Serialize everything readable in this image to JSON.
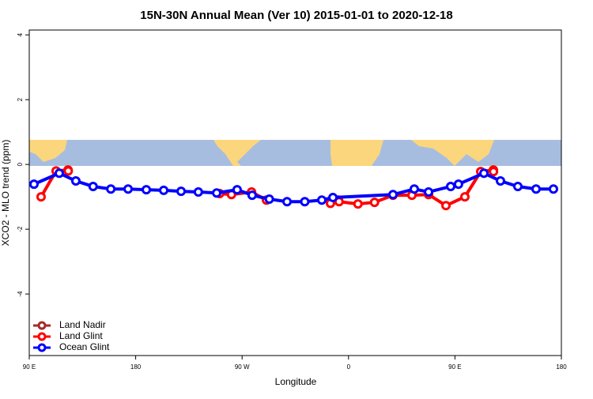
{
  "chart_data": {
    "type": "line",
    "title": "15N-30N Annual Mean (Ver 10)   2015-01-01 to 2020-12-18",
    "x_label": "Longitude",
    "y_label": "XCO2 - MLO trend (ppm)",
    "xlim": [
      90,
      540
    ],
    "ylim": [
      -5.9,
      4.15
    ],
    "xticks": [
      {
        "value": 90,
        "label": "90 E"
      },
      {
        "value": 180,
        "label": "180"
      },
      {
        "value": 270,
        "label": "90 W"
      },
      {
        "value": 360,
        "label": "0"
      },
      {
        "value": 450,
        "label": "90 E"
      },
      {
        "value": 540,
        "label": "180"
      }
    ],
    "yticks": [
      -4,
      -2,
      0,
      2,
      4
    ],
    "legend": "bottom-left",
    "series": [
      {
        "name": "Land Nadir",
        "color": "#a52a2a",
        "x": [],
        "values": []
      },
      {
        "name": "Land Glint",
        "color": "#ff0000",
        "x": [
          100,
          112.7,
          122.8,
          123,
          190,
          251,
          261,
          278,
          290.6,
          320,
          344.7,
          351.4,
          352,
          368,
          382,
          397.6,
          413.6,
          427.7,
          442.4,
          458.4,
          471.8,
          482.5,
          482.6
        ],
        "values": [
          -1.0,
          -0.2,
          -0.17,
          -0.2,
          null,
          -0.9,
          -0.93,
          -0.85,
          -1.1,
          null,
          -1.2,
          -1.1,
          -1.15,
          -1.22,
          -1.17,
          -0.95,
          -0.95,
          -0.93,
          -1.27,
          -1.0,
          -0.22,
          -0.17,
          -0.22
        ]
      },
      {
        "name": "Ocean Glint",
        "color": "#0000ff",
        "x": [
          94,
          115.4,
          129.4,
          144,
          159,
          173.6,
          189,
          203.7,
          218.4,
          233,
          248.5,
          265.8,
          278.5,
          293,
          308,
          323,
          337.4,
          346.8,
          397.6,
          415.6,
          427.7,
          446.4,
          453,
          474.5,
          488.5,
          503.2,
          518.6,
          533.3
        ],
        "values": [
          -0.61,
          -0.27,
          -0.51,
          -0.68,
          -0.76,
          -0.76,
          -0.78,
          -0.8,
          -0.83,
          -0.85,
          -0.88,
          -0.78,
          -0.95,
          -1.07,
          -1.15,
          -1.15,
          -1.1,
          -1.02,
          -0.93,
          -0.76,
          -0.85,
          -0.68,
          -0.61,
          -0.27,
          -0.51,
          -0.68,
          -0.76,
          -0.76
        ]
      }
    ]
  }
}
